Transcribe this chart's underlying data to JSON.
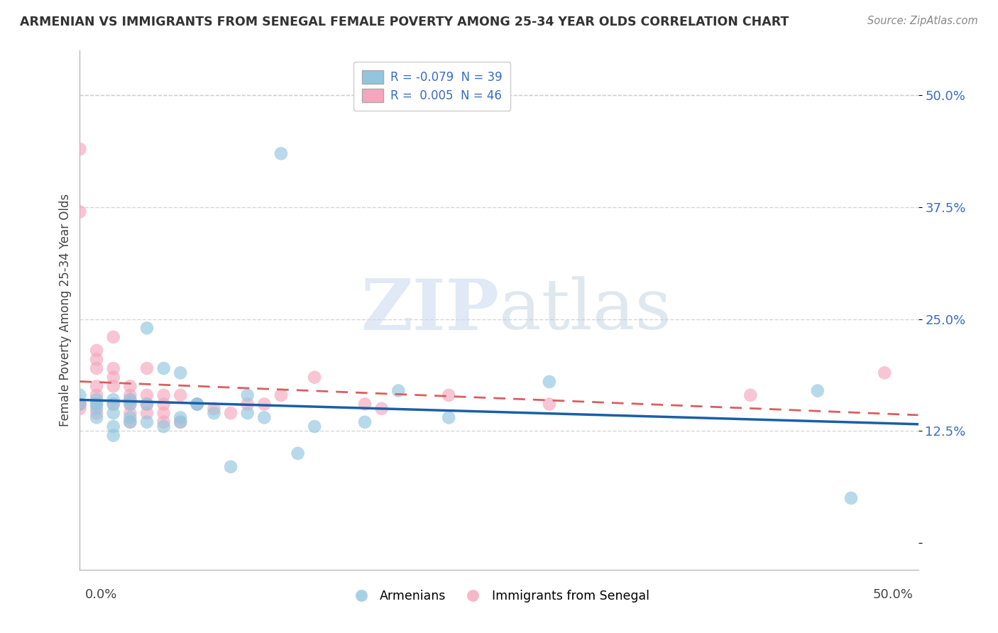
{
  "title": "ARMENIAN VS IMMIGRANTS FROM SENEGAL FEMALE POVERTY AMONG 25-34 YEAR OLDS CORRELATION CHART",
  "source": "Source: ZipAtlas.com",
  "ylabel": "Female Poverty Among 25-34 Year Olds",
  "xlim": [
    0.0,
    0.5
  ],
  "ylim": [
    -0.03,
    0.55
  ],
  "yticks": [
    0.0,
    0.125,
    0.25,
    0.375,
    0.5
  ],
  "ytick_labels": [
    "",
    "12.5%",
    "25.0%",
    "37.5%",
    "50.0%"
  ],
  "legend_blue_label": "R = -0.079  N = 39",
  "legend_pink_label": "R =  0.005  N = 46",
  "blue_scatter_color": "#92c5de",
  "pink_scatter_color": "#f4a6bc",
  "blue_line_color": "#1a5fa8",
  "pink_line_color": "#d95f60",
  "background_color": "#ffffff",
  "grid_color": "#cccccc",
  "watermark_zip": "ZIP",
  "watermark_atlas": "atlas",
  "armenians_x": [
    0.0,
    0.0,
    0.01,
    0.01,
    0.01,
    0.01,
    0.02,
    0.02,
    0.02,
    0.02,
    0.02,
    0.03,
    0.03,
    0.03,
    0.03,
    0.04,
    0.04,
    0.04,
    0.05,
    0.05,
    0.06,
    0.06,
    0.06,
    0.07,
    0.07,
    0.08,
    0.09,
    0.1,
    0.1,
    0.11,
    0.12,
    0.13,
    0.14,
    0.17,
    0.19,
    0.22,
    0.28,
    0.44,
    0.46
  ],
  "armenians_y": [
    0.155,
    0.165,
    0.14,
    0.15,
    0.155,
    0.16,
    0.13,
    0.145,
    0.155,
    0.16,
    0.12,
    0.14,
    0.155,
    0.16,
    0.135,
    0.24,
    0.135,
    0.155,
    0.13,
    0.195,
    0.14,
    0.135,
    0.19,
    0.155,
    0.155,
    0.145,
    0.085,
    0.145,
    0.165,
    0.14,
    0.435,
    0.1,
    0.13,
    0.135,
    0.17,
    0.14,
    0.18,
    0.17,
    0.05
  ],
  "senegal_x": [
    0.0,
    0.0,
    0.0,
    0.0,
    0.0,
    0.01,
    0.01,
    0.01,
    0.01,
    0.01,
    0.01,
    0.01,
    0.02,
    0.02,
    0.02,
    0.02,
    0.02,
    0.03,
    0.03,
    0.03,
    0.03,
    0.03,
    0.03,
    0.04,
    0.04,
    0.04,
    0.04,
    0.05,
    0.05,
    0.05,
    0.05,
    0.06,
    0.06,
    0.07,
    0.08,
    0.09,
    0.1,
    0.11,
    0.12,
    0.14,
    0.17,
    0.18,
    0.22,
    0.28,
    0.4,
    0.48
  ],
  "senegal_y": [
    0.44,
    0.37,
    0.155,
    0.155,
    0.15,
    0.215,
    0.205,
    0.195,
    0.175,
    0.165,
    0.155,
    0.145,
    0.23,
    0.195,
    0.185,
    0.175,
    0.155,
    0.175,
    0.165,
    0.16,
    0.155,
    0.145,
    0.135,
    0.195,
    0.165,
    0.155,
    0.145,
    0.165,
    0.155,
    0.145,
    0.135,
    0.165,
    0.135,
    0.155,
    0.15,
    0.145,
    0.155,
    0.155,
    0.165,
    0.185,
    0.155,
    0.15,
    0.165,
    0.155,
    0.165,
    0.19
  ]
}
